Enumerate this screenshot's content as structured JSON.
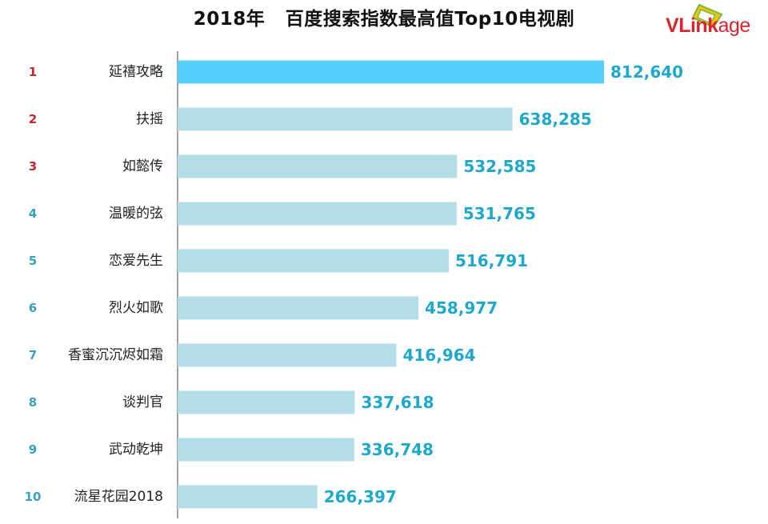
{
  "chart_data": {
    "type": "bar",
    "orientation": "horizontal",
    "title": "2018年   百度搜索指数最高值Top10电视剧",
    "ranks": [
      "1",
      "2",
      "3",
      "4",
      "5",
      "6",
      "7",
      "8",
      "9",
      "10"
    ],
    "categories": [
      "延禧攻略",
      "扶摇",
      "如懿传",
      "温暖的弦",
      "恋爱先生",
      "烈火如歌",
      "香蜜沉沉烬如霜",
      "谈判官",
      "武动乾坤",
      "流星花园2018"
    ],
    "values": [
      812640,
      638285,
      532585,
      531765,
      516791,
      458977,
      416964,
      337618,
      336748,
      266397
    ],
    "value_labels": [
      "812,640",
      "638,285",
      "532,585",
      "531,765",
      "516,791",
      "458,977",
      "416,964",
      "337,618",
      "336,748",
      "266,397"
    ],
    "xlim": [
      0,
      812640
    ],
    "grid": false,
    "legend": "none"
  },
  "logo": {
    "text": "VLinkage"
  },
  "colors": {
    "top_bar": "#55d0fb",
    "bar": "#b3dde8",
    "value_text": "#1fa8cc",
    "rank_top3": "#c0282d",
    "rank_other": "#3a9fc0",
    "category_text": "#222222",
    "axis": "#444444"
  }
}
